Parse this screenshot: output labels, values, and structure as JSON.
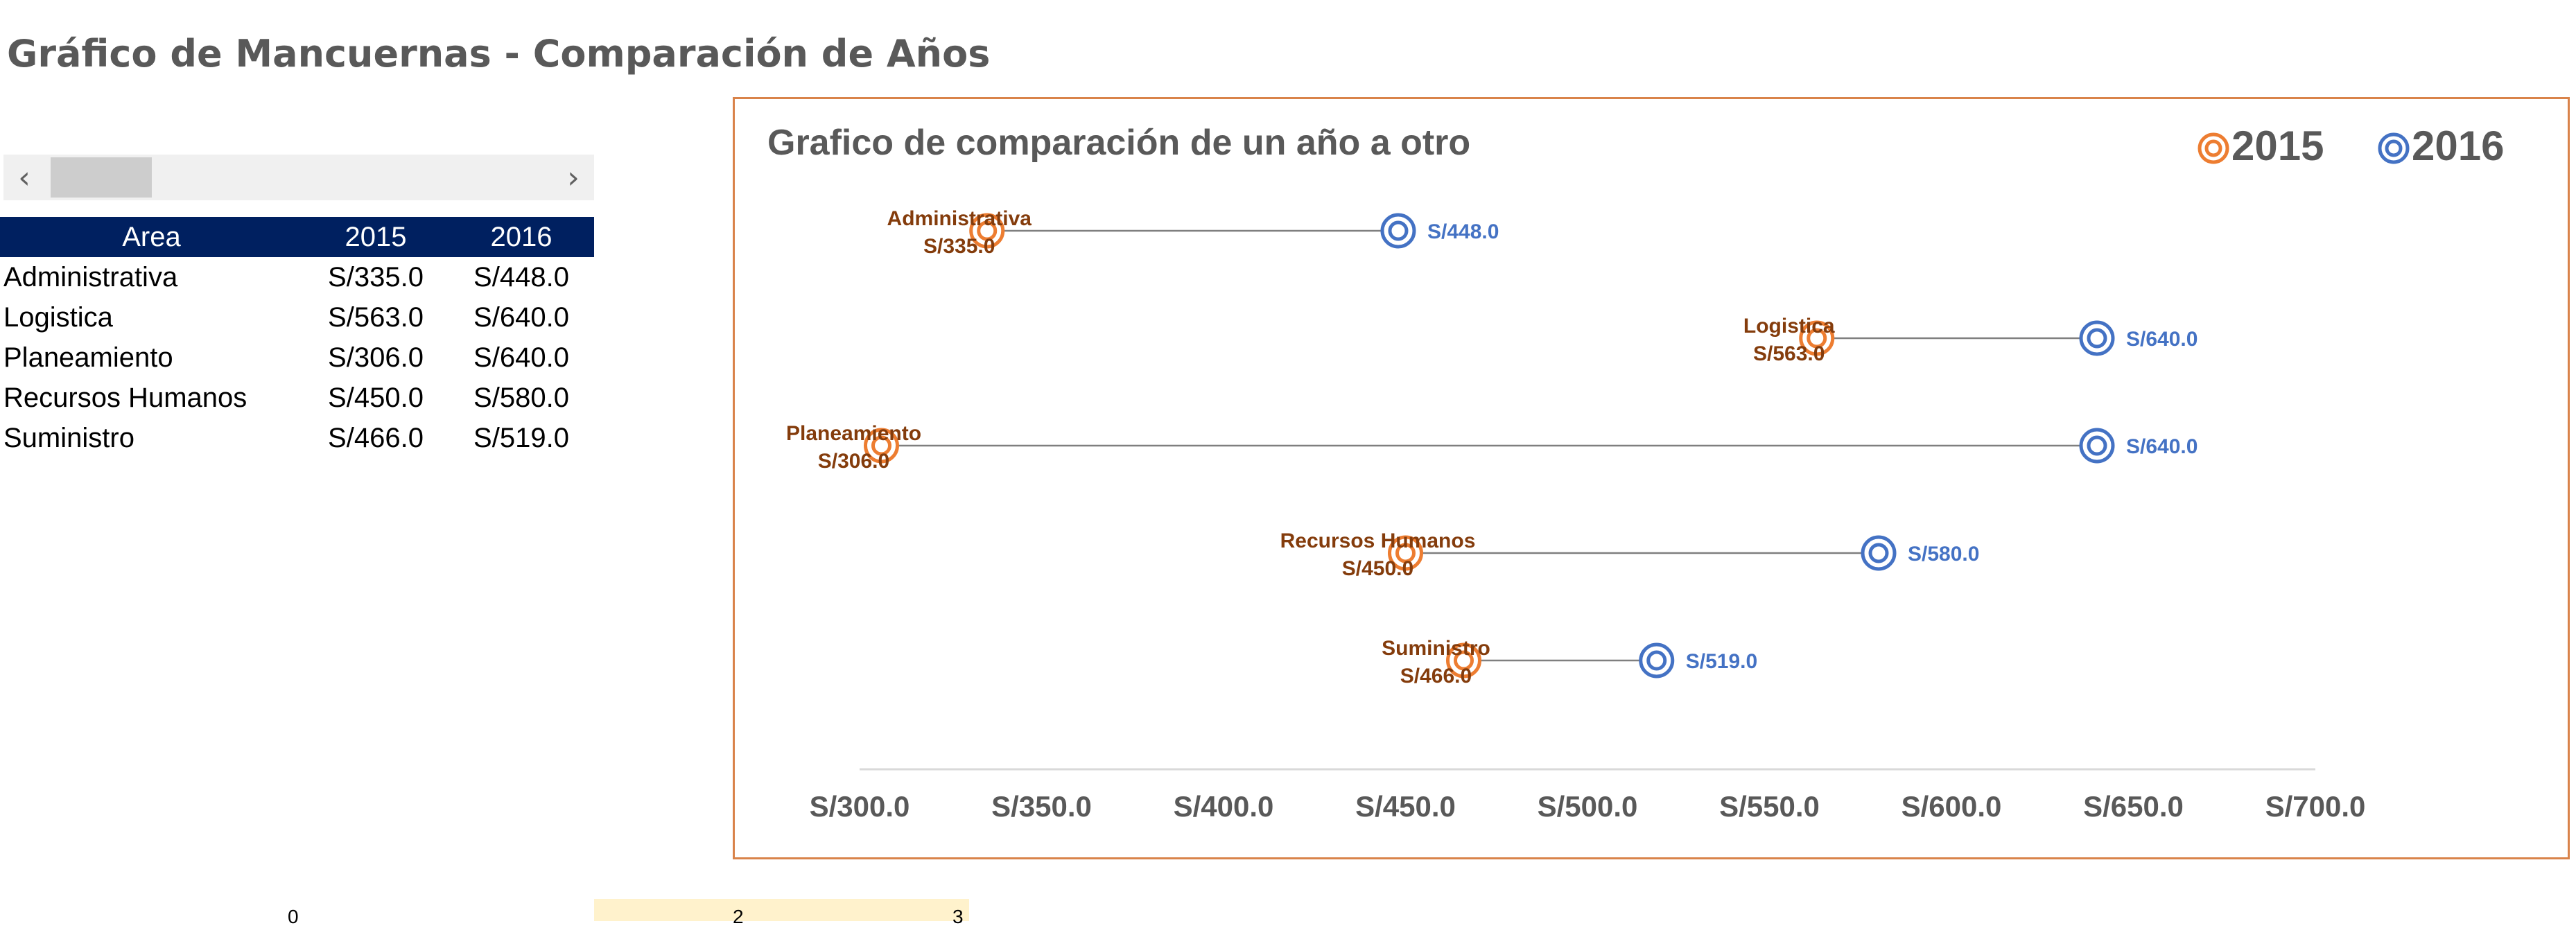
{
  "sheet": {
    "title": "Gráfico de Mancuernas - Comparación de Años"
  },
  "scrollbar": {
    "left_icon": "chevron-left-icon",
    "right_icon": "chevron-right-icon",
    "left_glyph": "‹",
    "right_glyph": "›"
  },
  "table": {
    "headers": [
      "Area",
      "2015",
      "2016"
    ],
    "rows": [
      [
        "Administrativa",
        "S/335.0",
        "S/448.0"
      ],
      [
        "Logistica",
        "S/563.0",
        "S/640.0"
      ],
      [
        "Planeamiento",
        "S/306.0",
        "S/640.0"
      ],
      [
        "Recursos Humanos",
        "S/450.0",
        "S/580.0"
      ],
      [
        "Suministro",
        "S/466.0",
        "S/519.0"
      ]
    ]
  },
  "bottom_row": [
    "0",
    "2",
    "3"
  ],
  "chart_data": {
    "type": "dumbbell",
    "title": "Grafico de comparación de un año a otro",
    "xlabel": "",
    "ylabel": "",
    "x_ticks": [
      "S/300.0",
      "S/350.0",
      "S/400.0",
      "S/450.0",
      "S/500.0",
      "S/550.0",
      "S/600.0",
      "S/650.0",
      "S/700.0"
    ],
    "xlim": [
      300,
      700
    ],
    "legend_position": "top-right",
    "categories": [
      "Administrativa",
      "Logistica",
      "Planeamiento",
      "Recursos Humanos",
      "Suministro"
    ],
    "series": [
      {
        "name": "2015",
        "color": "#ed7d31",
        "label_color": "#843c0c",
        "values": [
          335,
          563,
          306,
          450,
          466
        ],
        "labels": [
          "S/335.0",
          "S/563.0",
          "S/306.0",
          "S/450.0",
          "S/466.0"
        ]
      },
      {
        "name": "2016",
        "color": "#4472c4",
        "label_color": "#4472c4",
        "values": [
          448,
          640,
          640,
          580,
          519
        ],
        "labels": [
          "S/448.0",
          "S/640.0",
          "S/640.0",
          "S/580.0",
          "S/519.0"
        ]
      }
    ],
    "connector_color": "#7f7f7f",
    "axis_color": "#d9d9d9",
    "tick_color": "#595959",
    "grid": false
  }
}
